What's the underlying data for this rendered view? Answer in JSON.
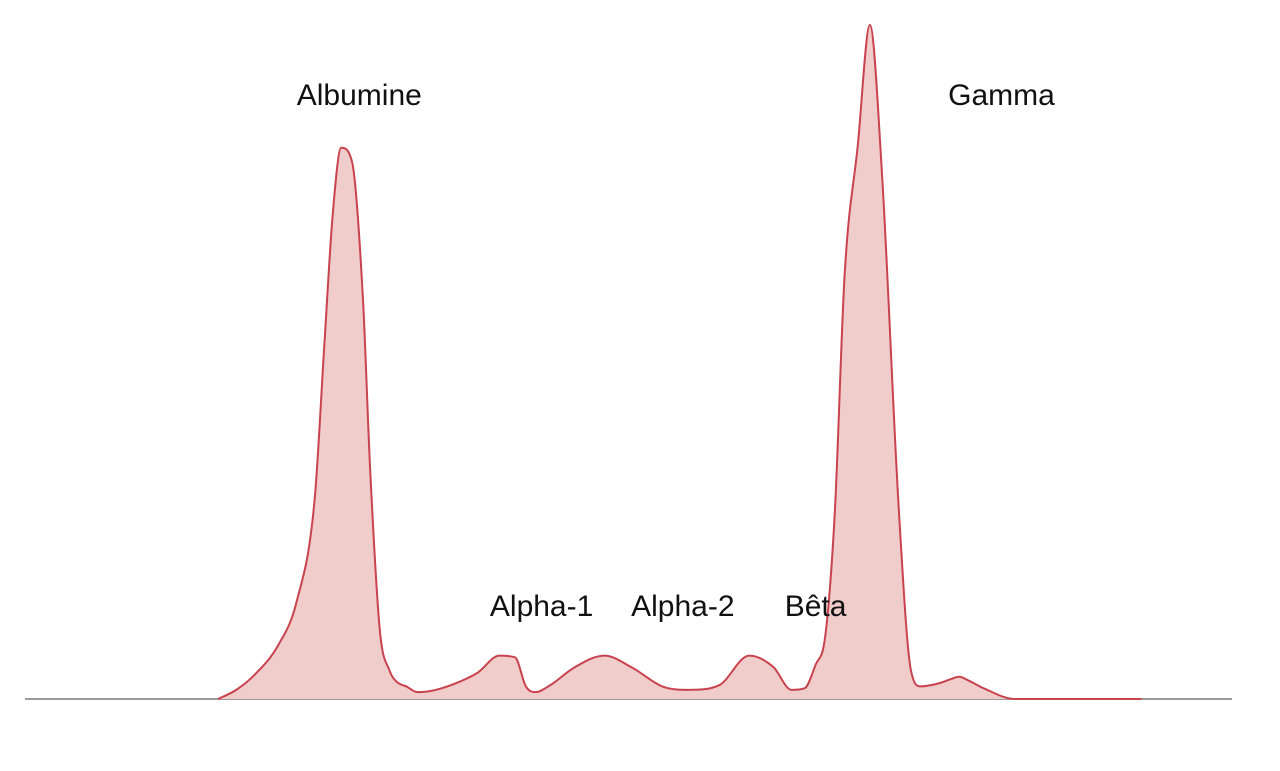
{
  "chart_data": {
    "type": "area",
    "title": "",
    "xlabel": "",
    "ylabel": "",
    "xlim": [
      0,
      100
    ],
    "ylim": [
      0,
      100
    ],
    "grid": false,
    "legend": "none",
    "colors": {
      "fill": "#f0cccb",
      "line": "#c9434f",
      "baseline": "#9a9a9a",
      "label": "#111111"
    },
    "x": [
      16,
      17.5,
      19,
      21,
      22.5,
      24,
      24.8,
      25.5,
      26.2,
      27.1,
      28,
      28.6,
      29.4,
      30.2,
      30.8,
      31.6,
      32.5,
      33.6,
      35.5,
      37.5,
      39.3,
      40.6,
      41.5,
      42.3,
      43.5,
      45.5,
      48,
      50.3,
      52.8,
      55,
      57.5,
      60,
      62,
      63.5,
      64.6,
      65.5,
      66.3,
      67.1,
      67.9,
      69,
      70,
      71,
      72.4,
      73.4,
      74.2,
      75,
      75.8,
      76.6,
      77.4,
      78.2,
      79.5,
      82,
      84.6,
      87.5,
      90.6,
      92.5
    ],
    "y": [
      0,
      1.6,
      4.2,
      9.5,
      17,
      35,
      62,
      85,
      96.5,
      94,
      70,
      40,
      12,
      5,
      3,
      2.2,
      1.2,
      1.4,
      2.6,
      4.6,
      7.6,
      7.3,
      2.2,
      1.2,
      2.4,
      5.5,
      7.6,
      5.5,
      2.2,
      1.6,
      2.4,
      7.6,
      5.6,
      1.6,
      1.9,
      6,
      11,
      33,
      74,
      97,
      118,
      92,
      33,
      5,
      2.2,
      2.4,
      2.8,
      3.4,
      3.9,
      3.2,
      1.8,
      0,
      0,
      0,
      0,
      0
    ],
    "annotations": [
      {
        "text": "Albumine",
        "x": 27.7,
        "y": 104
      },
      {
        "text": "Alpha-1",
        "x": 42.8,
        "y": 14.5
      },
      {
        "text": "Alpha-2",
        "x": 54.5,
        "y": 14.5
      },
      {
        "text": "Bêta",
        "x": 65.5,
        "y": 14.5
      },
      {
        "text": "Gamma",
        "x": 80.9,
        "y": 104
      }
    ]
  }
}
